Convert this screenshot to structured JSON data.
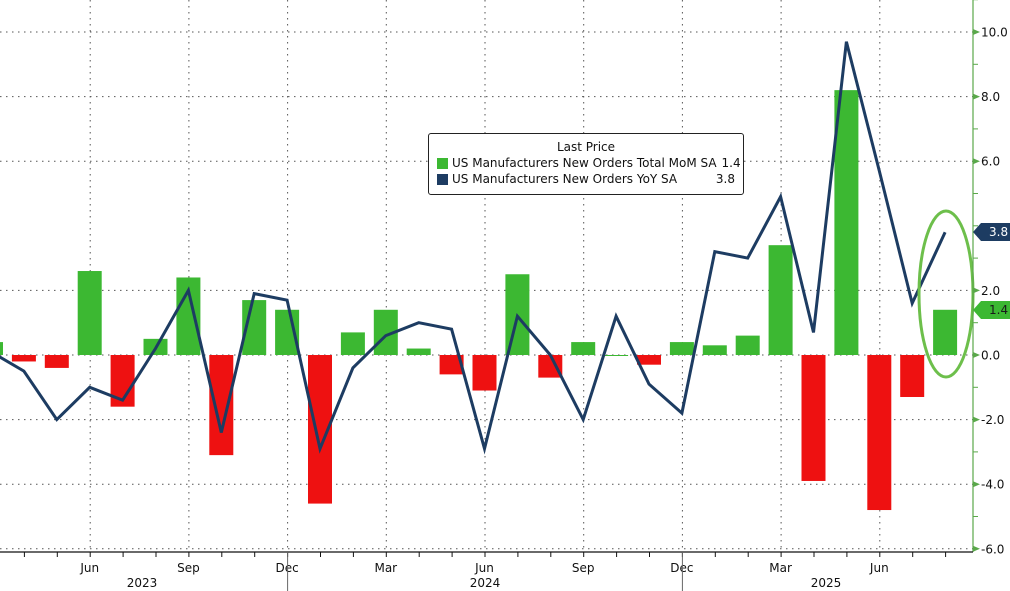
{
  "chart_data": {
    "type": "bar+line",
    "title": "",
    "legend": {
      "title": "Last Price",
      "position": "upper-center",
      "entries": [
        {
          "name": "US Manufacturers New Orders Total MoM SA",
          "value": "1.4",
          "color": "#3cb832",
          "type": "bar"
        },
        {
          "name": "US Manufacturers New Orders YoY SA",
          "value": "3.8",
          "color": "#1d3c62",
          "type": "line"
        }
      ]
    },
    "x": [
      "Mar 2023",
      "Apr 2023",
      "May 2023",
      "Jun 2023",
      "Jul 2023",
      "Aug 2023",
      "Sep 2023",
      "Oct 2023",
      "Nov 2023",
      "Dec 2023",
      "Jan 2024",
      "Feb 2024",
      "Mar 2024",
      "Apr 2024",
      "May 2024",
      "Jun 2024",
      "Jul 2024",
      "Aug 2024",
      "Sep 2024",
      "Oct 2024",
      "Nov 2024",
      "Dec 2024",
      "Jan 2025",
      "Feb 2025",
      "Mar 2025",
      "Apr 2025",
      "May 2025",
      "Jun 2025",
      "Jul 2025",
      "Aug 2025"
    ],
    "series": [
      {
        "name": "US Manufacturers New Orders Total MoM SA",
        "type": "bar",
        "positive_color": "#3cb832",
        "negative_color": "#ee1111",
        "values": [
          0.4,
          -0.2,
          -0.4,
          2.6,
          -1.6,
          0.5,
          2.4,
          -3.1,
          1.7,
          1.4,
          -4.6,
          0.7,
          1.4,
          0.2,
          -0.6,
          -1.1,
          2.5,
          -0.7,
          0.4,
          0.0,
          -0.3,
          0.4,
          0.3,
          0.6,
          3.4,
          -3.9,
          8.2,
          -4.8,
          -1.3,
          1.4
        ]
      },
      {
        "name": "US Manufacturers New Orders YoY SA",
        "type": "line",
        "color": "#1d3c62",
        "values": [
          0.1,
          -0.5,
          -2.0,
          -1.0,
          -1.4,
          0.2,
          2.0,
          -2.4,
          1.9,
          1.7,
          -2.9,
          -0.4,
          0.6,
          1.0,
          0.8,
          -2.9,
          1.2,
          0.0,
          -2.0,
          1.2,
          -0.9,
          -1.8,
          3.2,
          3.0,
          4.9,
          0.7,
          9.7,
          5.7,
          1.6,
          3.8
        ]
      }
    ],
    "xlabel": "",
    "ylabel": "",
    "ylim": [
      -6.0,
      10.0
    ],
    "yticks": [
      "10.0",
      "8.0",
      "6.0",
      "2.0",
      "0.0",
      "-2.0",
      "-4.0",
      "-6.0"
    ],
    "ytick_values": [
      10,
      8,
      6,
      2,
      0,
      -2,
      -4,
      -6
    ],
    "x_month_labels": [
      "Jun",
      "Sep",
      "Dec",
      "Mar",
      "Jun",
      "Sep",
      "Dec",
      "Mar",
      "Jun"
    ],
    "x_year_labels": [
      "2023",
      "2024",
      "2025"
    ],
    "grid": true,
    "y_axis_side": "right",
    "last_value_tags": [
      {
        "value": "3.8",
        "color": "#1d3c62"
      },
      {
        "value": "1.4",
        "color": "#3cb832"
      }
    ],
    "annotation": "green ellipse highlighting latest month"
  }
}
